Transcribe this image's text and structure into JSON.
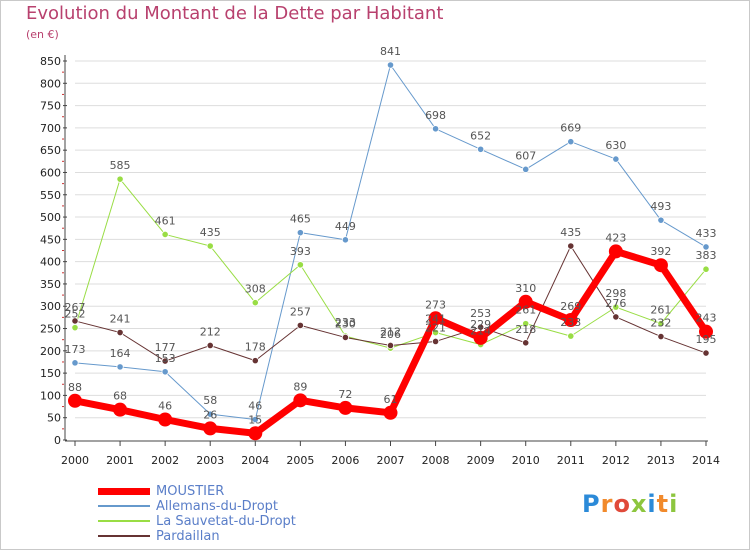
{
  "title": "Evolution du Montant de la Dette par Habitant",
  "unit": "(en €)",
  "logo": "Proxiti",
  "chart_data": {
    "type": "line",
    "title": "Evolution du Montant de la Dette par Habitant",
    "ylabel": "(en €)",
    "xlabel": "",
    "ylim": [
      0,
      850
    ],
    "yticks": [
      0,
      50,
      100,
      150,
      200,
      250,
      300,
      350,
      400,
      450,
      500,
      550,
      600,
      650,
      700,
      750,
      800,
      850
    ],
    "grid": "horizontal",
    "legend_position": "bottom-left",
    "categories": [
      "2000",
      "2001",
      "2002",
      "2003",
      "2004",
      "2005",
      "2006",
      "2007",
      "2008",
      "2009",
      "2010",
      "2011",
      "2012",
      "2013",
      "2014"
    ],
    "series": [
      {
        "name": "MOUSTIER",
        "color": "#ff0000",
        "width": 7,
        "values": [
          88,
          68,
          46,
          26,
          15,
          89,
          72,
          61,
          273,
          229,
          310,
          269,
          423,
          392,
          243
        ]
      },
      {
        "name": "Allemans-du-Dropt",
        "color": "#6699cc",
        "width": 1,
        "values": [
          173,
          164,
          153,
          58,
          46,
          465,
          449,
          841,
          698,
          652,
          607,
          669,
          630,
          493,
          433
        ]
      },
      {
        "name": "La Sauvetat-du-Dropt",
        "color": "#99dd44",
        "width": 1,
        "values": [
          252,
          585,
          461,
          435,
          308,
          393,
          233,
          206,
          241,
          214,
          261,
          233,
          298,
          261,
          383
        ]
      },
      {
        "name": "Pardaillan",
        "color": "#663333",
        "width": 1,
        "values": [
          267,
          241,
          177,
          212,
          178,
          257,
          230,
          212,
          221,
          253,
          218,
          435,
          276,
          232,
          195
        ]
      }
    ]
  }
}
